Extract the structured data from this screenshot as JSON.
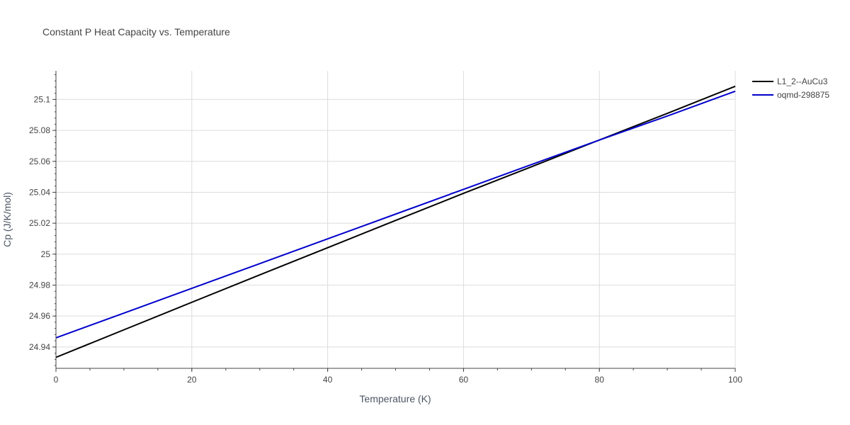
{
  "chart_data": {
    "type": "line",
    "title": "Constant P Heat Capacity vs. Temperature",
    "xlabel": "Temperature (K)",
    "ylabel": "Cp (J/K/mol)",
    "xlim": [
      0,
      100
    ],
    "ylim": [
      24.9262,
      25.1185
    ],
    "x_ticks": [
      0,
      20,
      40,
      60,
      80,
      100
    ],
    "x_tick_labels": [
      "0",
      "20",
      "40",
      "60",
      "80",
      "100"
    ],
    "y_ticks": [
      24.94,
      24.96,
      24.98,
      25.0,
      25.02,
      25.04,
      25.06,
      25.08,
      25.1
    ],
    "y_tick_labels": [
      "24.94",
      "24.96",
      "24.98",
      "25",
      "25.02",
      "25.04",
      "25.06",
      "25.08",
      "25.1"
    ],
    "grid": true,
    "legend_position": "top-right",
    "series": [
      {
        "name": "L1_2--AuCu3",
        "color": "#000000",
        "x": [
          0,
          10,
          20,
          30,
          40,
          50,
          60,
          70,
          80,
          90,
          100
        ],
        "y": [
          24.9333,
          24.9511,
          24.9689,
          24.9866,
          25.0042,
          25.0218,
          25.0393,
          25.0565,
          25.0738,
          25.091,
          25.1085
        ]
      },
      {
        "name": "oqmd-298875",
        "color": "#0000cc",
        "x": [
          0,
          10,
          20,
          30,
          40,
          50,
          60,
          70,
          80,
          90,
          100
        ],
        "y": [
          24.9459,
          24.9619,
          24.9779,
          24.9939,
          25.0099,
          25.0259,
          25.0419,
          25.0579,
          25.0738,
          25.0893,
          25.1053
        ]
      }
    ]
  }
}
